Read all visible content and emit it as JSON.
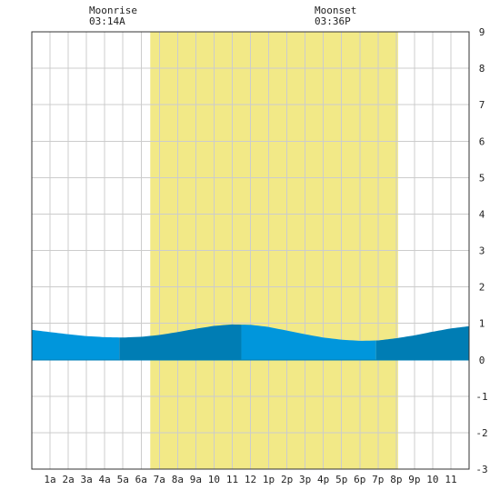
{
  "moonrise": {
    "label": "Moonrise",
    "time": "03:14A"
  },
  "moonset": {
    "label": "Moonset",
    "time": "03:36P"
  },
  "colors": {
    "daylight": "#f2e987",
    "tide_light": "#0096dc",
    "tide_dark": "#007db4",
    "grid": "#cccccc",
    "border": "#333333"
  },
  "chart_data": {
    "type": "area",
    "title": "",
    "xlabel": "",
    "ylabel": "",
    "xlim": [
      0,
      24
    ],
    "ylim": [
      -3,
      9
    ],
    "grid": true,
    "x_tick_labels": [
      "1a",
      "2a",
      "3a",
      "4a",
      "5a",
      "6a",
      "7a",
      "8a",
      "9a",
      "10",
      "11",
      "12",
      "1p",
      "2p",
      "3p",
      "4p",
      "5p",
      "6p",
      "7p",
      "8p",
      "9p",
      "10",
      "11"
    ],
    "y_ticks": [
      -3,
      -2,
      -1,
      0,
      1,
      2,
      3,
      4,
      5,
      6,
      7,
      8,
      9
    ],
    "daylight_span_hours": [
      6.5,
      20.1
    ],
    "tide_band_boundaries_hours": [
      0,
      4.8,
      11.5,
      18.9,
      24
    ],
    "series": [
      {
        "x": [
          0,
          1,
          2,
          3,
          4,
          5,
          6,
          7,
          8,
          9,
          10,
          11,
          12,
          13,
          14,
          15,
          16,
          17,
          18,
          19,
          20,
          21,
          22,
          23,
          24
        ],
        "values": [
          0.82,
          0.76,
          0.7,
          0.65,
          0.62,
          0.61,
          0.63,
          0.68,
          0.76,
          0.85,
          0.93,
          0.97,
          0.96,
          0.9,
          0.8,
          0.7,
          0.61,
          0.55,
          0.52,
          0.53,
          0.59,
          0.67,
          0.77,
          0.86,
          0.92
        ]
      }
    ]
  }
}
